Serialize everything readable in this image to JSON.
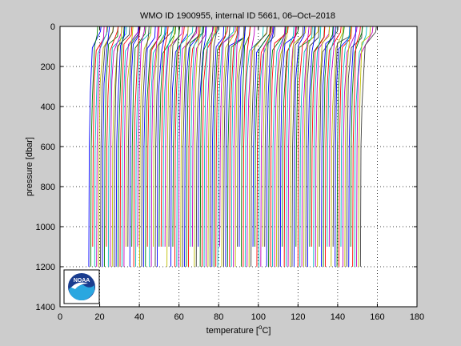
{
  "chart_data": {
    "type": "line",
    "title": "WMO ID 1900955, internal ID 5661, 06–Oct–2018",
    "xlabel_prefix": "temperature [",
    "xlabel_sup": "o",
    "xlabel_suffix": "C]",
    "ylabel": "pressure [dbar]",
    "xlim": [
      0,
      180
    ],
    "ylim": [
      0,
      1400
    ],
    "y_reversed": true,
    "grid": "dotted",
    "x_ticks": [
      "0",
      "20",
      "40",
      "60",
      "80",
      "100",
      "120",
      "140",
      "160",
      "180"
    ],
    "y_ticks": [
      "0",
      "200",
      "400",
      "600",
      "800",
      "1000",
      "1200",
      "1400"
    ],
    "waterfall": {
      "profile_count": 140,
      "first_offset_degC": 14.5,
      "last_offset_degC": 151.5,
      "note_hidden": ""
    },
    "series_colors": [
      "#0000ff",
      "#008000",
      "#ff0000",
      "#00bfbf",
      "#bf00bf",
      "#bfbf00",
      "#404040"
    ]
  },
  "logo": {
    "text": "NOAA",
    "colors": {
      "ring": "#1a3d8f",
      "sea": "#2aa7e0",
      "bird": "#ffffff"
    }
  }
}
